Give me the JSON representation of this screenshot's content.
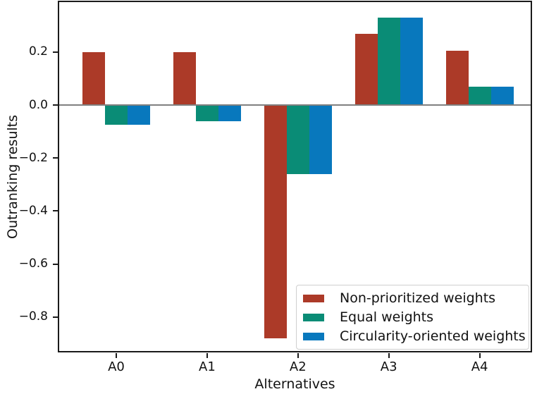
{
  "chart_data": {
    "type": "bar",
    "title": "",
    "xlabel": "Alternatives",
    "ylabel": "Outranking results",
    "categories": [
      "A0",
      "A1",
      "A2",
      "A3",
      "A4"
    ],
    "series": [
      {
        "name": "Non-prioritized weights",
        "color": "#ac3a28",
        "values": [
          0.2,
          0.2,
          -0.88,
          0.27,
          0.205
        ]
      },
      {
        "name": "Equal weights",
        "color": "#0a8c76",
        "values": [
          -0.075,
          -0.06,
          -0.26,
          0.33,
          0.07
        ]
      },
      {
        "name": "Circularity-oriented weights",
        "color": "#0878bd",
        "values": [
          -0.075,
          -0.06,
          -0.26,
          0.33,
          0.07
        ]
      }
    ],
    "y_ticks": [
      {
        "value": 0.2,
        "label": "0.2"
      },
      {
        "value": 0.0,
        "label": "0.0"
      },
      {
        "value": -0.2,
        "label": "−0.2"
      },
      {
        "value": -0.4,
        "label": "−0.4"
      },
      {
        "value": -0.6,
        "label": "−0.6"
      },
      {
        "value": -0.8,
        "label": "−0.8"
      }
    ],
    "ylim": [
      -0.93,
      0.39
    ],
    "grid": false,
    "legend_position": "lower right",
    "zero_line_color": "#808080",
    "axis_color": "#1a1a1a",
    "background_color": "#ffffff"
  }
}
